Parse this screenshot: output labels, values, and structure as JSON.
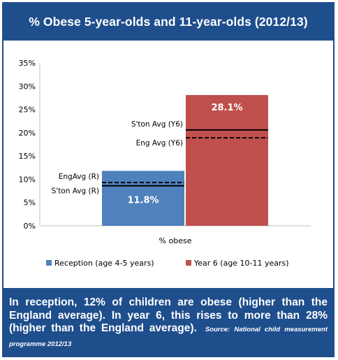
{
  "header": {
    "title": "% Obese 5-year-olds and 11-year-olds (2012/13)"
  },
  "colors": {
    "reception": "#4f81bd",
    "year6": "#c0504d",
    "frame": "#1f4e8c"
  },
  "chart_data": {
    "type": "bar",
    "title": "% Obese 5-year-olds and 11-year-olds (2012/13)",
    "categories": [
      "% obese"
    ],
    "series": [
      {
        "name": "Reception (age 4-5 years)",
        "values": [
          11.8
        ],
        "label": "11.8%"
      },
      {
        "name": "Year 6 (age 10-11 years)",
        "values": [
          28.1
        ],
        "label": "28.1%"
      }
    ],
    "reference_lines": [
      {
        "label": "EngAvg (R)",
        "value": 9.3,
        "style": "dashed",
        "series": "Reception (age 4-5 years)"
      },
      {
        "label": "S'ton Avg (R)",
        "value": 8.6,
        "style": "solid",
        "series": "Reception (age 4-5 years)"
      },
      {
        "label": "S'ton Avg (Y6)",
        "value": 20.6,
        "style": "solid",
        "series": "Year 6 (age 10-11 years)"
      },
      {
        "label": "Eng Avg (Y6)",
        "value": 18.9,
        "style": "dashed",
        "series": "Year 6 (age 10-11 years)"
      }
    ],
    "xlabel": "",
    "ylabel": "",
    "ylim": [
      0,
      35
    ],
    "yticks": [
      "0%",
      "5%",
      "10%",
      "15%",
      "20%",
      "25%",
      "30%",
      "35%"
    ],
    "legend_position": "bottom"
  },
  "footer": {
    "text": "In reception, 12% of children are obese (higher than the England average). In year 6, this rises to more than 28% (higher than the England average).",
    "source": "Source: National child measurement programme 2012/13"
  }
}
